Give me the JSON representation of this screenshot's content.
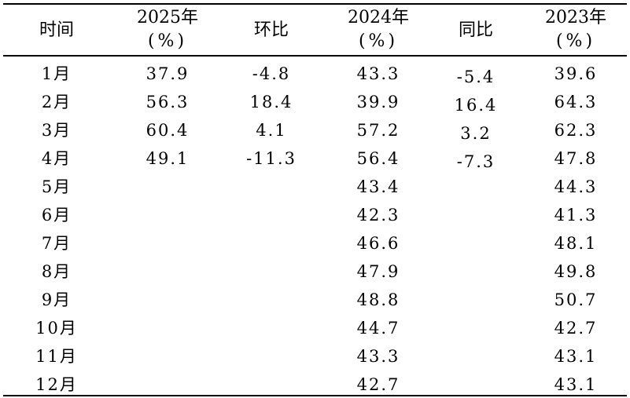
{
  "table": {
    "columns": [
      {
        "line1": "时间",
        "line2": ""
      },
      {
        "line1": "2025年",
        "line2": "(%)"
      },
      {
        "line1": "环比",
        "line2": ""
      },
      {
        "line1": "2024年",
        "line2": "(%)"
      },
      {
        "line1": "同比",
        "line2": ""
      },
      {
        "line1": "2023年",
        "line2": "(%)"
      }
    ],
    "rows": [
      [
        "1月",
        "37.9",
        "-4.8",
        "43.3",
        "-5.4",
        "39.6"
      ],
      [
        "2月",
        "56.3",
        "18.4",
        "39.9",
        "16.4",
        "64.3"
      ],
      [
        "3月",
        "60.4",
        "4.1",
        "57.2",
        "3.2",
        "62.3"
      ],
      [
        "4月",
        "49.1",
        "-11.3",
        "56.4",
        "-7.3",
        "47.8"
      ],
      [
        "5月",
        "",
        "",
        "43.4",
        "",
        "44.3"
      ],
      [
        "6月",
        "",
        "",
        "42.3",
        "",
        "41.3"
      ],
      [
        "7月",
        "",
        "",
        "46.6",
        "",
        "48.1"
      ],
      [
        "8月",
        "",
        "",
        "47.9",
        "",
        "49.8"
      ],
      [
        "9月",
        "",
        "",
        "48.8",
        "",
        "50.7"
      ],
      [
        "10月",
        "",
        "",
        "44.7",
        "",
        "42.7"
      ],
      [
        "11月",
        "",
        "",
        "43.3",
        "",
        "43.1"
      ],
      [
        "12月",
        "",
        "",
        "42.7",
        "",
        "43.1"
      ]
    ]
  }
}
